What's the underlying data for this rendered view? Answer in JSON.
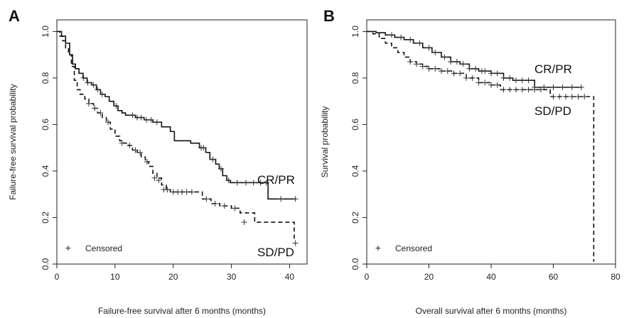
{
  "chart_data": [
    {
      "type": "line",
      "panel": "A",
      "xlabel": "Failure-free survival after 6 months (months)",
      "ylabel": "Failure-free survival probability",
      "xlim": [
        0,
        43
      ],
      "ylim": [
        0,
        1.05
      ],
      "xticks": [
        0,
        10,
        20,
        30,
        40
      ],
      "yticks": [
        0.0,
        0.2,
        0.4,
        0.6,
        0.8,
        1.0
      ],
      "ytick_labels": [
        "0.0",
        "0.2",
        "0.4",
        "0.6",
        "0.8",
        "1.0"
      ],
      "legend": {
        "symbol": "+",
        "label": "Censored",
        "position": "bottom-left"
      },
      "series": [
        {
          "name": "CR/PR",
          "style": "solid",
          "x": [
            0,
            0.8,
            1.5,
            2.2,
            2.7,
            3.2,
            3.8,
            4.5,
            5.2,
            6.0,
            6.8,
            7.5,
            8.3,
            9.0,
            9.8,
            10.5,
            11.2,
            11.8,
            12.6,
            13.5,
            15.0,
            16.5,
            18.0,
            19.5,
            20.2,
            21.5,
            23.0,
            24.5,
            25.6,
            26.3,
            27.3,
            27.9,
            28.5,
            29.2,
            29.8,
            36.3,
            41.0
          ],
          "y": [
            1.0,
            0.98,
            0.95,
            0.9,
            0.86,
            0.84,
            0.82,
            0.8,
            0.78,
            0.77,
            0.75,
            0.73,
            0.72,
            0.7,
            0.68,
            0.66,
            0.65,
            0.64,
            0.64,
            0.63,
            0.62,
            0.61,
            0.59,
            0.57,
            0.53,
            0.53,
            0.52,
            0.5,
            0.48,
            0.45,
            0.43,
            0.41,
            0.38,
            0.36,
            0.35,
            0.28,
            0.28
          ],
          "censor_x": [
            4.6,
            5.3,
            6.3,
            7.0,
            7.8,
            10.2,
            13.0,
            13.8,
            14.5,
            15.4,
            16.2,
            17.2,
            24.8,
            25.2,
            26.8,
            28.2,
            29.5,
            31.0,
            32.5,
            33.8,
            35.0,
            36.0,
            38.5,
            41.0
          ]
        },
        {
          "name": "SD/PD",
          "style": "dashed",
          "x": [
            0,
            0.5,
            1.0,
            1.5,
            2.0,
            2.5,
            3.0,
            3.5,
            4.0,
            4.8,
            5.5,
            6.3,
            7.0,
            7.8,
            8.5,
            9.2,
            10.0,
            10.8,
            11.5,
            12.3,
            13.0,
            13.8,
            14.5,
            15.2,
            15.8,
            16.5,
            17.2,
            18.0,
            18.8,
            19.5,
            23.5,
            25.0,
            26.5,
            28.0,
            30.0,
            31.5,
            34.0,
            36.0,
            40.8
          ],
          "y": [
            1.0,
            0.98,
            0.96,
            0.93,
            0.9,
            0.85,
            0.79,
            0.75,
            0.73,
            0.71,
            0.69,
            0.67,
            0.65,
            0.63,
            0.61,
            0.58,
            0.55,
            0.53,
            0.52,
            0.51,
            0.49,
            0.48,
            0.46,
            0.44,
            0.42,
            0.39,
            0.37,
            0.34,
            0.32,
            0.31,
            0.31,
            0.28,
            0.26,
            0.25,
            0.24,
            0.22,
            0.18,
            0.18,
            0.1
          ],
          "censor_x": [
            5.5,
            6.5,
            7.5,
            8.8,
            11.2,
            12.5,
            13.5,
            14.3,
            15.5,
            16.8,
            17.5,
            18.4,
            19.0,
            20.0,
            20.8,
            21.5,
            22.3,
            23.2,
            25.7,
            27.2,
            28.8,
            30.6,
            32.2,
            41.0
          ],
          "censor_y": [
            0.69,
            0.67,
            0.65,
            0.61,
            0.52,
            0.51,
            0.49,
            0.48,
            0.44,
            0.37,
            0.36,
            0.32,
            0.32,
            0.31,
            0.31,
            0.31,
            0.31,
            0.31,
            0.28,
            0.26,
            0.25,
            0.24,
            0.18,
            0.09
          ]
        }
      ]
    },
    {
      "type": "line",
      "panel": "B",
      "xlabel": "Overall survival after 6 months (months)",
      "ylabel": "Survival probability",
      "xlim": [
        0,
        80
      ],
      "ylim": [
        0,
        1.05
      ],
      "xticks": [
        0,
        20,
        40,
        60,
        80
      ],
      "yticks": [
        0.0,
        0.2,
        0.4,
        0.6,
        0.8,
        1.0
      ],
      "ytick_labels": [
        "0.0",
        "0.2",
        "0.4",
        "0.6",
        "0.8",
        "1.0"
      ],
      "legend": {
        "symbol": "+",
        "label": "Censored",
        "position": "bottom-left"
      },
      "series": [
        {
          "name": "CR/PR",
          "style": "solid",
          "x": [
            0,
            3,
            6,
            9,
            12,
            15,
            18,
            21,
            24,
            27,
            30,
            33,
            36,
            40,
            44,
            47,
            50,
            54,
            69
          ],
          "y": [
            1.0,
            0.995,
            0.985,
            0.975,
            0.965,
            0.95,
            0.93,
            0.91,
            0.89,
            0.87,
            0.86,
            0.84,
            0.83,
            0.82,
            0.8,
            0.79,
            0.79,
            0.76,
            0.76
          ],
          "censor_x": [
            8,
            11,
            14,
            17,
            20,
            22,
            25,
            27,
            29,
            31,
            33,
            35,
            37,
            38,
            40,
            42,
            44,
            46,
            48,
            50,
            52,
            54,
            57,
            60,
            63,
            66,
            69
          ]
        },
        {
          "name": "SD/PD",
          "style": "dashed",
          "x": [
            0,
            2,
            4,
            6,
            8,
            10,
            12,
            14,
            16,
            18,
            20,
            24,
            28,
            32,
            36,
            40,
            43,
            56,
            59,
            73,
            73
          ],
          "y": [
            1.0,
            0.99,
            0.97,
            0.95,
            0.93,
            0.91,
            0.89,
            0.87,
            0.86,
            0.85,
            0.84,
            0.83,
            0.82,
            0.8,
            0.78,
            0.77,
            0.75,
            0.75,
            0.72,
            0.72,
            0.01
          ],
          "censor_x": [
            14,
            16,
            18,
            20,
            22,
            24,
            26,
            28,
            30,
            32,
            34,
            36,
            38,
            40,
            42,
            44,
            46,
            48,
            50,
            52,
            54,
            56,
            60,
            62,
            64,
            66,
            68,
            70
          ]
        }
      ]
    }
  ]
}
